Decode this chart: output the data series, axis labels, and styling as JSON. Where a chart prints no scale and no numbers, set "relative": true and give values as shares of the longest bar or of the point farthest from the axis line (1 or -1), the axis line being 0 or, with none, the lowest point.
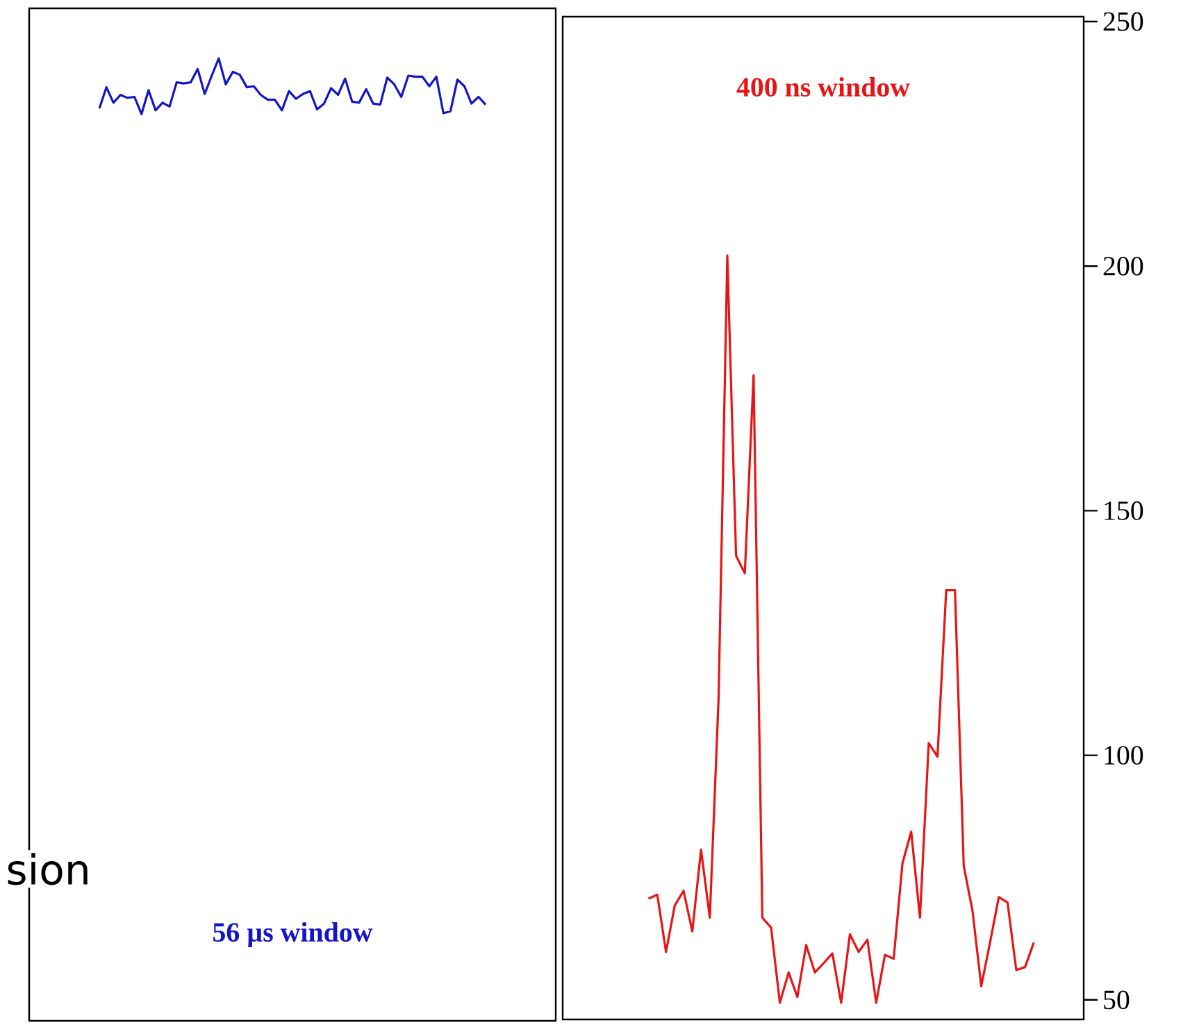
{
  "chart_data": [
    {
      "type": "line",
      "relative": true,
      "title": "56 µs window",
      "annotations": [
        "sion"
      ],
      "categories": [
        null,
        null,
        null,
        null,
        null,
        null,
        null,
        null,
        null,
        null,
        null,
        null,
        null,
        null,
        null,
        null,
        null,
        null,
        null,
        null,
        null,
        null,
        null,
        null,
        null,
        null,
        null,
        null,
        null,
        null,
        null,
        null,
        null,
        null,
        null,
        null,
        null,
        null,
        null,
        null,
        null,
        null,
        null,
        null,
        null,
        null,
        null,
        null,
        null,
        null,
        null,
        null,
        null,
        null,
        null,
        null
      ],
      "series": [
        {
          "color": "#1414c8",
          "values": [
            0.948,
            0.97,
            0.954,
            0.962,
            0.959,
            0.96,
            0.942,
            0.967,
            0.946,
            0.954,
            0.95,
            0.975,
            0.974,
            0.975,
            0.989,
            0.963,
            0.982,
            1,
            0.973,
            0.986,
            0.983,
            0.97,
            0.971,
            0.962,
            0.957,
            0.957,
            0.946,
            0.966,
            0.958,
            0.963,
            0.966,
            0.947,
            0.953,
            0.969,
            0.962,
            0.979,
            0.955,
            0.954,
            0.968,
            0.953,
            0.952,
            0.98,
            0.973,
            0.96,
            0.982,
            0.981,
            0.981,
            0.971,
            0.981,
            0.943,
            0.945,
            0.978,
            0.971,
            0.953,
            0.96,
            0.952
          ]
        }
      ]
    },
    {
      "type": "line",
      "title": "400 ns window",
      "ylim": [
        46,
        251
      ],
      "yticks": [
        50,
        100,
        150,
        200,
        250
      ],
      "categories": [
        null,
        null,
        null,
        null,
        null,
        null,
        null,
        null,
        null,
        null,
        null,
        null,
        null,
        null,
        null,
        null,
        null,
        null,
        null,
        null,
        null,
        null,
        null,
        null,
        null,
        null,
        null,
        null,
        null,
        null,
        null,
        null,
        null,
        null,
        null,
        null,
        null,
        null,
        null,
        null,
        null,
        null,
        null,
        null,
        null
      ],
      "series": [
        {
          "color": "#e81414",
          "values": [
            70.7,
            71.5,
            59.8,
            69.3,
            72.3,
            64.0,
            80.7,
            66.8,
            111.5,
            202.2,
            140.8,
            137.2,
            177.7,
            66.8,
            64.8,
            49.4,
            55.6,
            50.6,
            61.2,
            55.6,
            57.5,
            59.5,
            49.4,
            63.4,
            59.8,
            62.3,
            49.4,
            59.2,
            58.4,
            77.9,
            84.4,
            66.8,
            102.5,
            99.7,
            133.8,
            133.8,
            77.4,
            68.2,
            52.8,
            61.7,
            71.0,
            69.9,
            56.1,
            56.7,
            61.7
          ]
        }
      ]
    }
  ]
}
